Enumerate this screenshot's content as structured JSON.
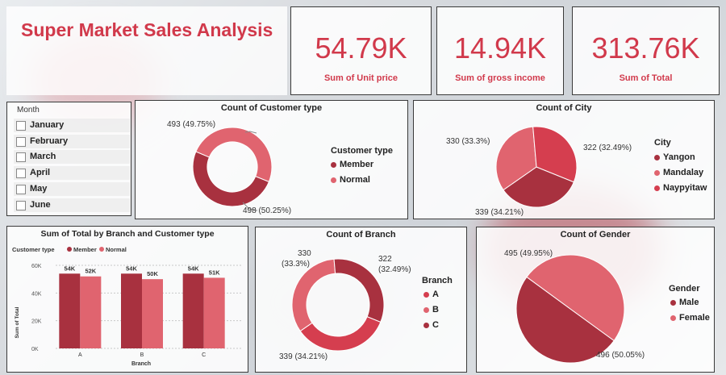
{
  "colors": {
    "dark": "#a8313f",
    "light": "#e0646f",
    "mid": "#d53e4f",
    "accent": "#d1394b"
  },
  "title": "Super Market Sales Analysis",
  "kpis": [
    {
      "value": "54.79K",
      "label": "Sum of Unit price"
    },
    {
      "value": "14.94K",
      "label": "Sum of gross income"
    },
    {
      "value": "313.76K",
      "label": "Sum of Total"
    }
  ],
  "slicer": {
    "title": "Month",
    "options": [
      "January",
      "February",
      "March",
      "April",
      "May",
      "June"
    ]
  },
  "chart_data": [
    {
      "type": "pie",
      "variant": "donut",
      "title": "Count of Customer type",
      "legend_title": "Customer type",
      "labels": [
        "Member",
        "Normal"
      ],
      "values": [
        498,
        493
      ],
      "data_labels": [
        "498 (50.25%)",
        "493 (49.75%)"
      ]
    },
    {
      "type": "pie",
      "title": "Count of City",
      "legend_title": "City",
      "labels": [
        "Yangon",
        "Mandalay",
        "Naypyitaw"
      ],
      "values": [
        339,
        330,
        322
      ],
      "data_labels": [
        "339 (34.21%)",
        "330 (33.3%)",
        "322 (32.49%)"
      ]
    },
    {
      "type": "bar",
      "title": "Sum of Total by Branch and Customer type",
      "legend_title": "Customer type",
      "categories": [
        "A",
        "B",
        "C"
      ],
      "series": [
        {
          "name": "Member",
          "values": [
            54000,
            54000,
            54000
          ],
          "labels": [
            "54K",
            "54K",
            "54K"
          ]
        },
        {
          "name": "Normal",
          "values": [
            52000,
            50000,
            51000
          ],
          "labels": [
            "52K",
            "50K",
            "51K"
          ]
        }
      ],
      "xlabel": "Branch",
      "ylabel": "Sum of Total",
      "yticks": [
        "0K",
        "20K",
        "40K",
        "60K"
      ],
      "ylim": [
        0,
        60000
      ]
    },
    {
      "type": "pie",
      "variant": "donut",
      "title": "Count of Branch",
      "legend_title": "Branch",
      "labels": [
        "A",
        "B",
        "C"
      ],
      "values": [
        339,
        330,
        322
      ],
      "data_labels": [
        "339 (34.21%)",
        "330 (33.3%)",
        "322 (32.49%)"
      ]
    },
    {
      "type": "pie",
      "title": "Count of Gender",
      "legend_title": "Gender",
      "labels": [
        "Male",
        "Female"
      ],
      "values": [
        496,
        495
      ],
      "data_labels": [
        "496 (50.05%)",
        "495 (49.95%)"
      ]
    }
  ]
}
